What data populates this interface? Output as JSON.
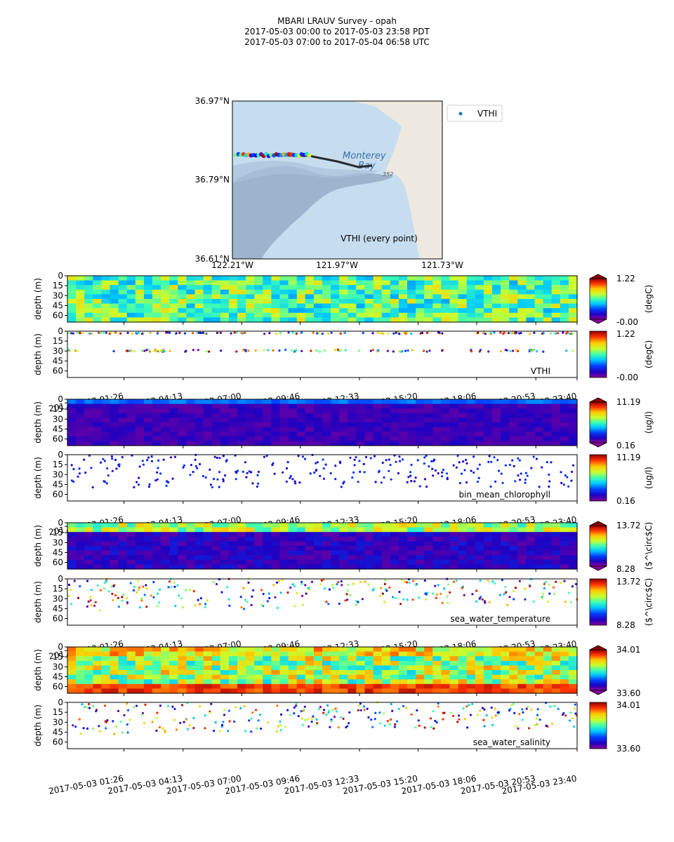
{
  "title": {
    "line1": "MBARI LRAUV Survey - opah",
    "line2": "2017-05-03 00:00  to  2017-05-03 23:58 PDT",
    "line3": "2017-05-03 07:00  to  2017-05-04 06:58 UTC"
  },
  "map": {
    "lat_ticks": [
      "36.97°N",
      "36.79°N",
      "36.61°N"
    ],
    "lon_ticks": [
      "122.21°W",
      "121.97°W",
      "121.73°W"
    ],
    "legend": "VTHI",
    "annotation": "VTHI (every point)",
    "place_label_1": "Monterey",
    "place_label_2": "Bay",
    "place_label_3": "352",
    "colors": {
      "water": "#c6dcef",
      "deep": "#8ea8c2",
      "land": "#ede9e0",
      "track": "#2b2b2b",
      "legend_dot": "#1f77b4"
    }
  },
  "depth_label": "depth (m)",
  "time_ticks": [
    "2017-05-03 01:26",
    "2017-05-03 04:13",
    "2017-05-03 07:00",
    "2017-05-03 09:46",
    "2017-05-03 12:33",
    "2017-05-03 15:20",
    "2017-05-03 18:06",
    "2017-05-03 20:53",
    "2017-05-03 23:40"
  ],
  "chart_data": [
    {
      "type": "heatmap",
      "variable": "VTHI",
      "kind": "contour",
      "ylabel": "depth (m)",
      "yticks": [
        0,
        15,
        30,
        45,
        60
      ],
      "ylim": [
        70,
        0
      ],
      "colorbar": {
        "max": "1.22",
        "min": "-0.00",
        "units": "(degC)",
        "colormap": "jet"
      }
    },
    {
      "type": "scatter",
      "variable": "VTHI",
      "kind": "points",
      "label": "VTHI",
      "ylabel": "depth (m)",
      "yticks": [
        0,
        15,
        30,
        45,
        60
      ],
      "ylim": [
        70,
        0
      ],
      "colorbar": {
        "max": "1.22",
        "min": "-0.00",
        "units": "(degC)",
        "colormap": "jet"
      }
    },
    {
      "type": "heatmap",
      "variable": "bin_mean_chlorophyll",
      "kind": "contour",
      "ylabel": "depth (m)",
      "yticks": [
        0,
        15,
        30,
        45,
        60
      ],
      "ylim": [
        70,
        0
      ],
      "colorbar": {
        "max": "11.19",
        "min": "0.16",
        "units": "(ug/l)",
        "colormap": "jet"
      }
    },
    {
      "type": "scatter",
      "variable": "bin_mean_chlorophyll",
      "kind": "points",
      "label": "bin_mean_chlorophyll",
      "ylabel": "depth (m)",
      "yticks": [
        0,
        15,
        30,
        45,
        60
      ],
      "ylim": [
        70,
        0
      ],
      "colorbar": {
        "max": "11.19",
        "min": "0.16",
        "units": "(ug/l)",
        "colormap": "jet"
      }
    },
    {
      "type": "heatmap",
      "variable": "sea_water_temperature",
      "kind": "contour",
      "ylabel": "depth (m)",
      "yticks": [
        0,
        15,
        30,
        45,
        60
      ],
      "ylim": [
        70,
        0
      ],
      "colorbar": {
        "max": "13.72",
        "min": "8.28",
        "units": "($^\\circ$C)",
        "colormap": "jet"
      }
    },
    {
      "type": "scatter",
      "variable": "sea_water_temperature",
      "kind": "points",
      "label": "sea_water_temperature",
      "ylabel": "depth (m)",
      "yticks": [
        0,
        15,
        30,
        45,
        60
      ],
      "ylim": [
        70,
        0
      ],
      "colorbar": {
        "max": "13.72",
        "min": "8.28",
        "units": "($^\\circ$C)",
        "colormap": "jet"
      }
    },
    {
      "type": "heatmap",
      "variable": "sea_water_salinity",
      "kind": "contour",
      "ylabel": "depth (m)",
      "yticks": [
        0,
        15,
        30,
        45,
        60
      ],
      "ylim": [
        70,
        0
      ],
      "colorbar": {
        "max": "34.01",
        "min": "33.60",
        "units": "",
        "colormap": "jet"
      }
    },
    {
      "type": "scatter",
      "variable": "sea_water_salinity",
      "kind": "points",
      "label": "sea_water_salinity",
      "ylabel": "depth (m)",
      "yticks": [
        0,
        15,
        30,
        45,
        60
      ],
      "ylim": [
        70,
        0
      ],
      "colorbar": {
        "max": "34.01",
        "min": "33.60",
        "units": "",
        "colormap": "jet"
      }
    }
  ]
}
